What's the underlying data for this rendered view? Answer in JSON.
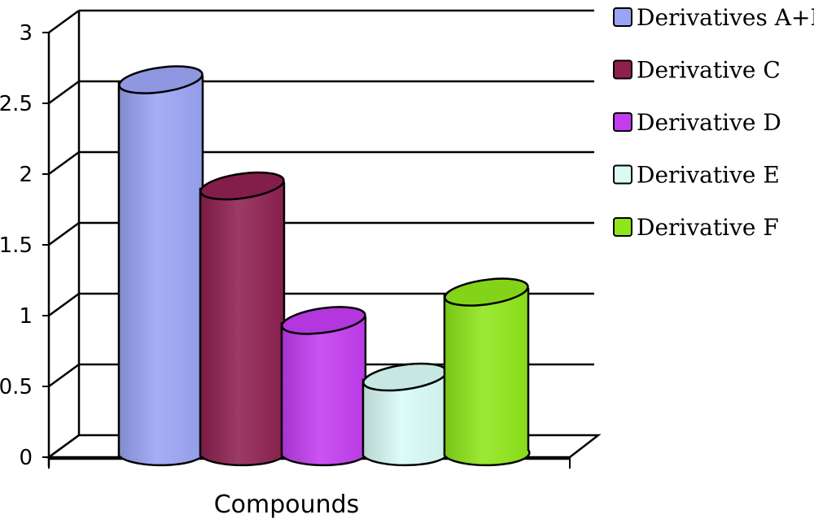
{
  "chart_data": {
    "type": "bar",
    "title": "",
    "xlabel": "Compounds",
    "ylabel": "",
    "ylim": [
      0,
      3
    ],
    "y_ticks": [
      "0",
      "0.5",
      "1",
      "1.5",
      "2",
      "2.5",
      "3"
    ],
    "grid": true,
    "three_d": true,
    "legend_position": "right",
    "series": [
      {
        "name": "Derivatives A+B",
        "value": 2.6,
        "color": "#9aa4f4"
      },
      {
        "name": "Derivative C",
        "value": 1.85,
        "color": "#8e2050"
      },
      {
        "name": "Derivative D",
        "value": 0.9,
        "color": "#c33cf0"
      },
      {
        "name": "Derivative E",
        "value": 0.5,
        "color": "#d8fbf6"
      },
      {
        "name": "Derivative F",
        "value": 1.1,
        "color": "#8ee61a"
      }
    ]
  }
}
